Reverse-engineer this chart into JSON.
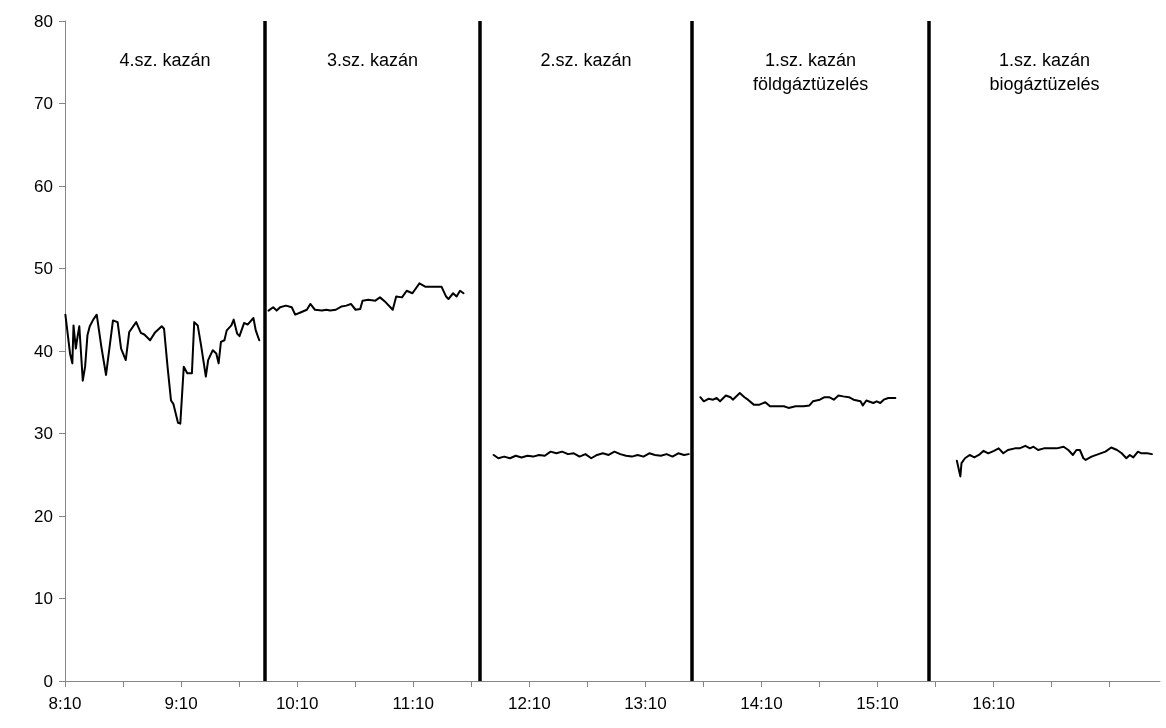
{
  "chart_data": {
    "type": "line",
    "xlim": [
      8.1667,
      17.6
    ],
    "ylim": [
      0,
      80
    ],
    "yticks": [
      0,
      10,
      20,
      30,
      40,
      50,
      60,
      70,
      80
    ],
    "xticks": [
      {
        "value": 8.1667,
        "label": "8:10"
      },
      {
        "value": 8.6667,
        "label": null
      },
      {
        "value": 9.1667,
        "label": "9:10"
      },
      {
        "value": 9.6667,
        "label": null
      },
      {
        "value": 10.1667,
        "label": "10:10"
      },
      {
        "value": 10.6667,
        "label": null
      },
      {
        "value": 11.1667,
        "label": "11:10"
      },
      {
        "value": 11.6667,
        "label": null
      },
      {
        "value": 12.1667,
        "label": "12:10"
      },
      {
        "value": 12.6667,
        "label": null
      },
      {
        "value": 13.1667,
        "label": "13:10"
      },
      {
        "value": 13.6667,
        "label": null
      },
      {
        "value": 14.1667,
        "label": "14:10"
      },
      {
        "value": 14.6667,
        "label": null
      },
      {
        "value": 15.1667,
        "label": "15:10"
      },
      {
        "value": 15.6667,
        "label": null
      },
      {
        "value": 16.1667,
        "label": "16:10"
      },
      {
        "value": 16.6667,
        "label": null
      },
      {
        "value": 17.1667,
        "label": null
      }
    ],
    "grid": false,
    "marker": "none",
    "line_style": "solid",
    "series": [
      {
        "color": "#000000",
        "x": [
          8.17,
          8.21,
          8.23,
          8.24,
          8.26,
          8.27,
          8.29,
          8.32,
          8.34,
          8.36,
          8.38,
          8.41,
          8.44,
          8.48,
          8.52,
          8.58,
          8.62,
          8.65,
          8.69,
          8.72,
          8.78,
          8.82,
          8.85,
          8.9,
          8.94,
          9.0,
          9.02,
          9.05,
          9.08,
          9.1,
          9.14,
          9.16,
          9.19,
          9.22,
          9.26,
          9.28,
          9.31,
          9.34,
          9.38,
          9.4,
          9.44,
          9.47,
          9.49,
          9.51,
          9.54,
          9.56,
          9.6,
          9.62,
          9.65,
          9.67,
          9.71,
          9.74,
          9.79,
          9.81,
          9.84
        ],
        "values": [
          44.4,
          39.7,
          38.5,
          43.1,
          40.3,
          41.3,
          43.0,
          36.4,
          38.1,
          41.9,
          43.0,
          43.8,
          44.4,
          40.5,
          37.1,
          43.7,
          43.5,
          40.3,
          38.9,
          42.3,
          43.5,
          42.2,
          42.0,
          41.3,
          42.2,
          43.0,
          42.7,
          38.1,
          34.0,
          33.6,
          31.3,
          31.2,
          38.1,
          37.3,
          37.3,
          43.5,
          43.1,
          40.6,
          36.9,
          38.9,
          40.1,
          39.7,
          38.5,
          41.1,
          41.3,
          42.5,
          43.1,
          43.8,
          42.1,
          41.8,
          43.4,
          43.2,
          44.0,
          42.5,
          41.3
        ]
      },
      {
        "color": "#000000",
        "x": [
          9.92,
          9.96,
          9.99,
          10.02,
          10.07,
          10.12,
          10.15,
          10.2,
          10.25,
          10.28,
          10.32,
          10.38,
          10.42,
          10.45,
          10.5,
          10.55,
          10.59,
          10.63,
          10.67,
          10.71,
          10.73,
          10.78,
          10.84,
          10.88,
          10.93,
          10.99,
          11.02,
          11.07,
          11.11,
          11.16,
          11.22,
          11.27,
          11.34,
          11.38,
          11.41,
          11.45,
          11.47,
          11.51,
          11.54,
          11.57,
          11.6
        ],
        "values": [
          44.9,
          45.3,
          44.9,
          45.3,
          45.5,
          45.3,
          44.4,
          44.7,
          45.0,
          45.7,
          45.0,
          44.9,
          45.0,
          44.9,
          45.0,
          45.4,
          45.5,
          45.7,
          45.0,
          45.1,
          46.1,
          46.2,
          46.1,
          46.5,
          45.9,
          45.0,
          46.6,
          46.5,
          47.3,
          47.0,
          48.2,
          47.8,
          47.8,
          47.8,
          47.8,
          46.6,
          46.3,
          47.0,
          46.6,
          47.3,
          47.0
        ]
      },
      {
        "color": "#000000",
        "x": [
          11.86,
          11.9,
          11.95,
          12.0,
          12.05,
          12.1,
          12.15,
          12.2,
          12.25,
          12.3,
          12.35,
          12.4,
          12.45,
          12.5,
          12.55,
          12.6,
          12.65,
          12.7,
          12.75,
          12.8,
          12.85,
          12.9,
          12.95,
          13.0,
          13.05,
          13.1,
          13.15,
          13.2,
          13.25,
          13.3,
          13.35,
          13.4,
          13.45,
          13.5,
          13.54
        ],
        "values": [
          27.4,
          27.0,
          27.2,
          27.0,
          27.3,
          27.1,
          27.3,
          27.2,
          27.4,
          27.3,
          27.8,
          27.6,
          27.8,
          27.5,
          27.6,
          27.2,
          27.5,
          27.0,
          27.4,
          27.6,
          27.4,
          27.8,
          27.5,
          27.3,
          27.2,
          27.4,
          27.2,
          27.6,
          27.4,
          27.3,
          27.5,
          27.2,
          27.6,
          27.4,
          27.5
        ]
      },
      {
        "color": "#000000",
        "x": [
          13.64,
          13.67,
          13.71,
          13.75,
          13.78,
          13.81,
          13.86,
          13.9,
          13.92,
          13.98,
          14.02,
          14.05,
          14.1,
          14.15,
          14.2,
          14.24,
          14.3,
          14.36,
          14.4,
          14.46,
          14.53,
          14.58,
          14.61,
          14.67,
          14.71,
          14.75,
          14.79,
          14.83,
          14.87,
          14.92,
          14.96,
          15.02,
          15.04,
          15.07,
          15.13,
          15.16,
          15.19,
          15.22,
          15.26,
          15.32
        ],
        "values": [
          34.4,
          33.9,
          34.2,
          34.1,
          34.3,
          33.9,
          34.6,
          34.4,
          34.1,
          34.9,
          34.4,
          34.1,
          33.5,
          33.5,
          33.8,
          33.3,
          33.3,
          33.3,
          33.1,
          33.3,
          33.3,
          33.4,
          33.9,
          34.1,
          34.4,
          34.4,
          34.1,
          34.6,
          34.5,
          34.4,
          34.1,
          33.9,
          33.4,
          34.0,
          33.7,
          33.9,
          33.7,
          34.1,
          34.3,
          34.3
        ]
      },
      {
        "color": "#000000",
        "x": [
          15.85,
          15.88,
          15.89,
          15.92,
          15.96,
          16.0,
          16.04,
          16.08,
          16.12,
          16.17,
          16.21,
          16.25,
          16.29,
          16.35,
          16.39,
          16.44,
          16.48,
          16.51,
          16.55,
          16.6,
          16.65,
          16.71,
          16.77,
          16.81,
          16.85,
          16.88,
          16.91,
          16.94,
          16.96,
          17.01,
          17.07,
          17.13,
          17.18,
          17.23,
          17.27,
          17.31,
          17.34,
          17.37,
          17.41,
          17.44,
          17.49,
          17.53
        ],
        "values": [
          26.7,
          24.8,
          26.4,
          27.0,
          27.4,
          27.1,
          27.4,
          27.9,
          27.6,
          27.9,
          28.2,
          27.6,
          28.0,
          28.2,
          28.2,
          28.5,
          28.2,
          28.4,
          28.0,
          28.2,
          28.2,
          28.2,
          28.4,
          28.0,
          27.4,
          28.0,
          28.0,
          27.0,
          26.8,
          27.2,
          27.5,
          27.8,
          28.3,
          28.0,
          27.6,
          27.0,
          27.4,
          27.1,
          27.8,
          27.6,
          27.6,
          27.5
        ]
      }
    ],
    "ref_lines": [
      {
        "axis": "x",
        "value": 9.89,
        "color": "#000000"
      },
      {
        "axis": "x",
        "value": 11.74,
        "color": "#000000"
      },
      {
        "axis": "x",
        "value": 13.57,
        "color": "#000000"
      },
      {
        "axis": "x",
        "value": 15.61,
        "color": "#000000"
      }
    ],
    "annotations": [
      "4.sz. kazán",
      "3.sz. kazán",
      "2.sz. kazán",
      "1.sz. kazán\nföldgáztüzelés",
      "1.sz. kazán\nbiogáztüzelés"
    ]
  }
}
